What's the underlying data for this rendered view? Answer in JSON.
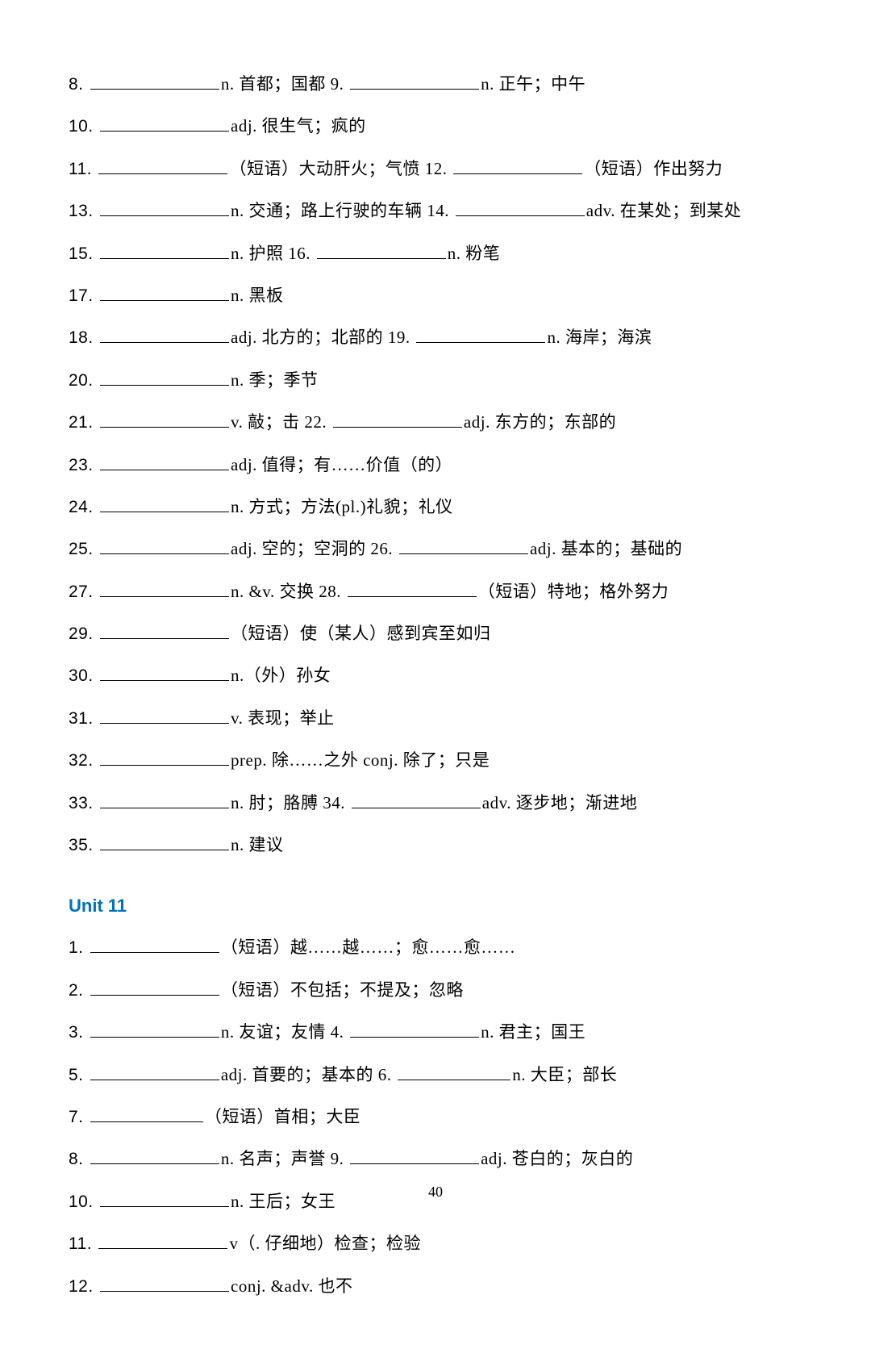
{
  "unit10_items": [
    {
      "n": "8.",
      "text": "n. 首都；国都 9. ",
      "text2": "n. 正午；中午"
    },
    {
      "n": "10.",
      "text": "adj. 很生气；疯的"
    },
    {
      "n": "11.",
      "text": "（短语）大动肝火；气愤 12. ",
      "text2": "（短语）作出努力"
    },
    {
      "n": "13.",
      "text": "n. 交通；路上行驶的车辆 14. ",
      "text2": "adv. 在某处；到某处"
    },
    {
      "n": "15.",
      "text": "n. 护照 16. ",
      "text2": "n. 粉笔"
    },
    {
      "n": "17.",
      "text": "n. 黑板"
    },
    {
      "n": "18.",
      "text": "adj. 北方的；北部的 19. ",
      "text2": "n. 海岸；海滨"
    },
    {
      "n": "20.",
      "text": "n. 季；季节"
    },
    {
      "n": "21.",
      "text": "v. 敲；击 22. ",
      "text2": "adj. 东方的；东部的"
    },
    {
      "n": "23.",
      "text": "adj. 值得；有……价值（的）"
    },
    {
      "n": "24.",
      "text": "n. 方式；方法(pl.)礼貌；礼仪"
    },
    {
      "n": "25.",
      "text": "adj. 空的；空洞的 26. ",
      "text2": "adj. 基本的；基础的"
    },
    {
      "n": "27.",
      "text": "n. &v. 交换 28. ",
      "text2": "（短语）特地；格外努力"
    },
    {
      "n": "29.",
      "text": "（短语）使（某人）感到宾至如归"
    },
    {
      "n": "30.",
      "text": "n.（外）孙女"
    },
    {
      "n": "31.",
      "text": "v. 表现；举止"
    },
    {
      "n": "32.",
      "text": "prep. 除……之外 conj. 除了；只是"
    },
    {
      "n": "33.",
      "text": "n. 肘；胳膊 34. ",
      "text2": "adv. 逐步地；渐进地"
    },
    {
      "n": "35.",
      "text": "n. 建议"
    }
  ],
  "unit11_title": "Unit 11",
  "unit11_items": [
    {
      "n": "1.",
      "text": "（短语）越……越……；愈……愈……"
    },
    {
      "n": "2.",
      "text": "（短语）不包括；不提及；忽略"
    },
    {
      "n": "3.",
      "text": "n. 友谊；友情 4. ",
      "text2": "n. 君主；国王"
    },
    {
      "n": "5.",
      "text": "adj. 首要的；基本的 6. ",
      "text2": "n. 大臣；部长",
      "short2": true
    },
    {
      "n": "7.",
      "text": "（短语）首相；大臣",
      "short": true
    },
    {
      "n": "8.",
      "text": "n. 名声；声誉 9. ",
      "text2": "adj. 苍白的；灰白的"
    },
    {
      "n": "10.",
      "text": "n. 王后；女王"
    },
    {
      "n": "11.",
      "text": "v（. 仔细地）检查；检验"
    },
    {
      "n": "12.",
      "text": "conj. &adv. 也不"
    }
  ],
  "page_number": "40"
}
